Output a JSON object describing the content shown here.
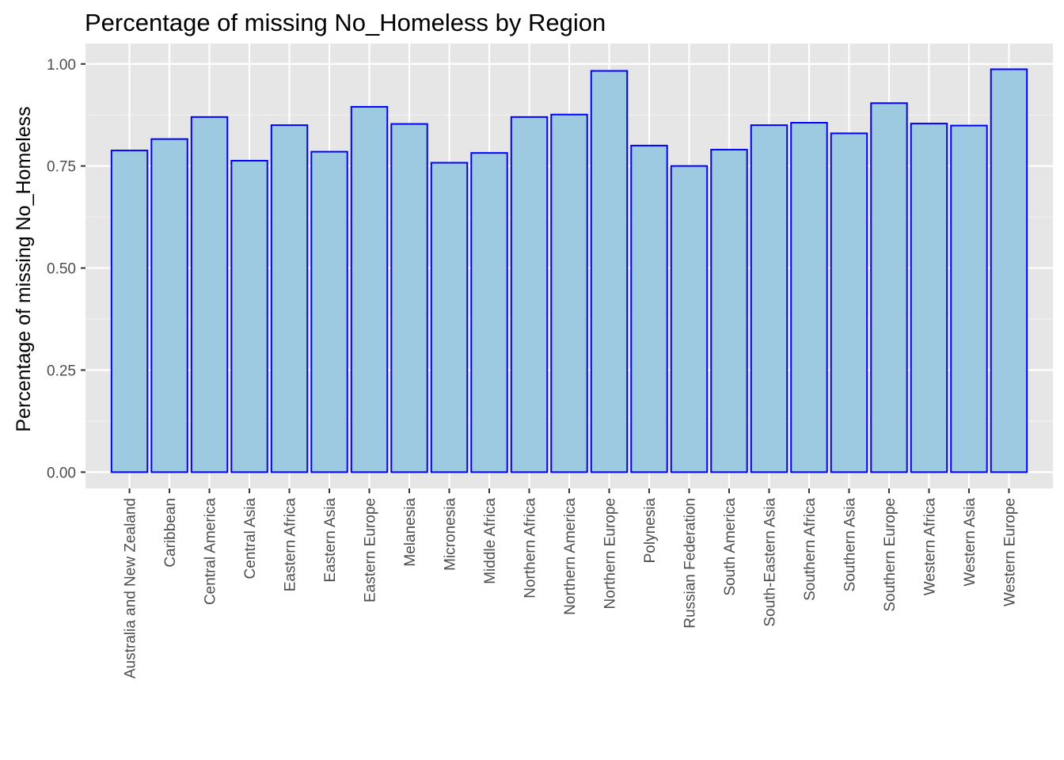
{
  "chart_data": {
    "type": "bar",
    "title": "Percentage of missing No_Homeless by Region",
    "xlabel": "",
    "ylabel": "Percentage of missing No_Homeless",
    "ylim": [
      -0.04,
      1.05
    ],
    "y_ticks": [
      0.0,
      0.25,
      0.5,
      0.75,
      1.0
    ],
    "y_tick_labels": [
      "0.00",
      "0.25",
      "0.50",
      "0.75",
      "1.00"
    ],
    "grid": true,
    "legend": "none",
    "categories": [
      "Australia and New Zealand",
      "Caribbean",
      "Central America",
      "Central Asia",
      "Eastern Africa",
      "Eastern Asia",
      "Eastern Europe",
      "Melanesia",
      "Micronesia",
      "Middle Africa",
      "Northern Africa",
      "Northern America",
      "Northern Europe",
      "Polynesia",
      "Russian Federation",
      "South America",
      "South-Eastern Asia",
      "Southern Africa",
      "Southern Asia",
      "Southern Europe",
      "Western Africa",
      "Western Asia",
      "Western Europe"
    ],
    "values": [
      0.788,
      0.816,
      0.87,
      0.763,
      0.85,
      0.785,
      0.895,
      0.853,
      0.758,
      0.782,
      0.87,
      0.876,
      0.983,
      0.8,
      0.75,
      0.79,
      0.85,
      0.856,
      0.83,
      0.904,
      0.854,
      0.849,
      0.987
    ],
    "colors": {
      "bar_fill": "#9ecae1",
      "bar_stroke": "#0000ff",
      "panel_background": "#e6e6e6",
      "grid_major": "#ffffff",
      "grid_minor": "#f2f2f2",
      "tick_label": "#4d4d4d",
      "tick_mark": "#333333"
    }
  }
}
